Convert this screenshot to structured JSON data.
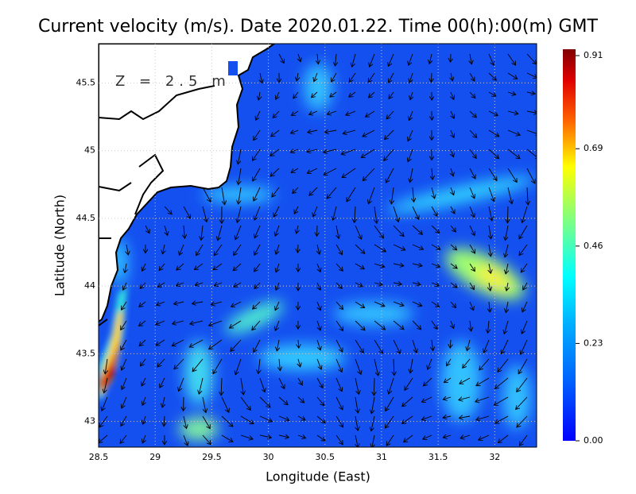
{
  "chart_data": {
    "type": "vector-map",
    "title": "Current velocity (m/s). Date 2020.01.22. Time 00(h):00(m) GMT",
    "annotation": "Z = 2.5 m",
    "x_label": "Longitude (East)",
    "y_label": "Latitude (North)",
    "xlim": [
      28.5,
      32.37
    ],
    "ylim": [
      42.81,
      45.79
    ],
    "xticks": [
      28.5,
      29,
      29.5,
      30,
      30.5,
      31,
      31.5,
      32
    ],
    "yticks": [
      43,
      43.5,
      44,
      44.5,
      45,
      45.5
    ],
    "grid": true,
    "colorbar": {
      "lim": [
        0,
        0.925
      ],
      "ticks": [
        {
          "value": 0,
          "label": "0.00"
        },
        {
          "value": 0.23,
          "label": "0.23"
        },
        {
          "value": 0.46,
          "label": "0.46"
        },
        {
          "value": 0.69,
          "label": "0.69"
        },
        {
          "value": 0.91,
          "label": "0.91"
        }
      ]
    }
  }
}
